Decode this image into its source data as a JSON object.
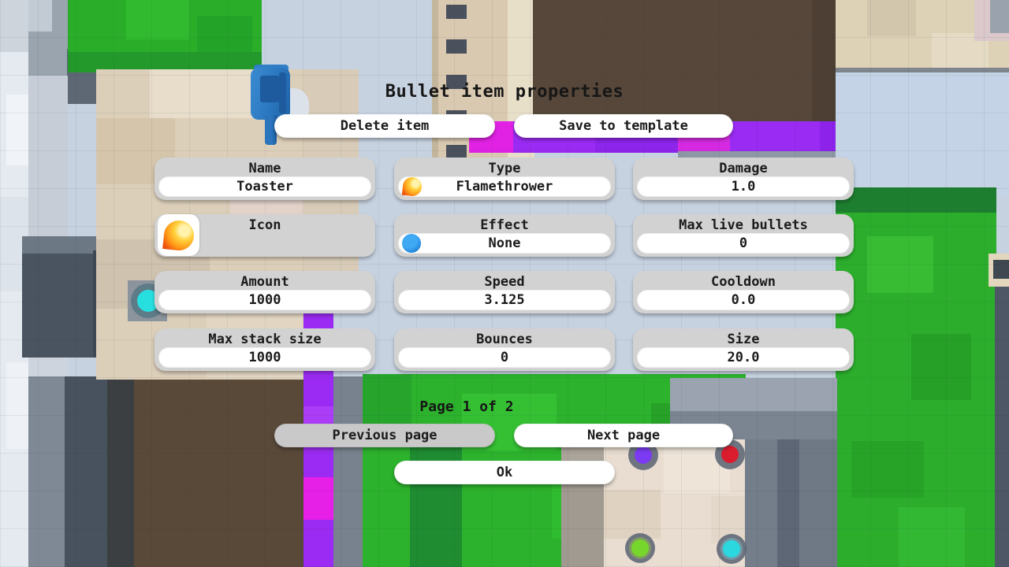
{
  "dialog": {
    "title": "Bullet item properties",
    "buttons": {
      "delete": "Delete item",
      "save_template": "Save to template",
      "previous": "Previous page",
      "next": "Next page",
      "ok": "Ok"
    },
    "page_indicator": "Page 1 of 2",
    "fields": {
      "name": {
        "label": "Name",
        "value": "Toaster"
      },
      "type": {
        "label": "Type",
        "value": "Flamethrower",
        "icon": "flame-icon"
      },
      "damage": {
        "label": "Damage",
        "value": "1.0"
      },
      "icon": {
        "label": "Icon",
        "icon": "flame-icon"
      },
      "effect": {
        "label": "Effect",
        "value": "None",
        "icon": "blue-circle-icon"
      },
      "max_live_bullets": {
        "label": "Max live bullets",
        "value": "0"
      },
      "amount": {
        "label": "Amount",
        "value": "1000"
      },
      "speed": {
        "label": "Speed",
        "value": "3.125"
      },
      "cooldown": {
        "label": "Cooldown",
        "value": "0.0"
      },
      "max_stack_size": {
        "label": "Max stack size",
        "value": "1000"
      },
      "bounces": {
        "label": "Bounces",
        "value": "0"
      },
      "size": {
        "label": "Size",
        "value": "20.0"
      }
    },
    "colors": {
      "panel": "#d2d2d2",
      "pill": "#ffffff",
      "text": "#1b1b1b",
      "disabled_button": "#c9c9c9"
    }
  },
  "world": {
    "colors": {
      "grass_green": "#2cb22c",
      "dark_green": "#1f8c31",
      "purple_conveyor": "#9b2bf2",
      "magenta_conveyor": "#e620e6",
      "brown_pit": "#57473a",
      "sand": "#dccfb9",
      "stone_grey": "#8b95a0",
      "water_blue": "#c7d2e1",
      "turret_blue": "#2b77bf",
      "plate_purple": "#7b3bf2",
      "plate_red": "#d91c2e",
      "plate_green": "#77d62b",
      "plate_cyan": "#2bd8e0",
      "item_cyan": "#28dfe0"
    }
  }
}
